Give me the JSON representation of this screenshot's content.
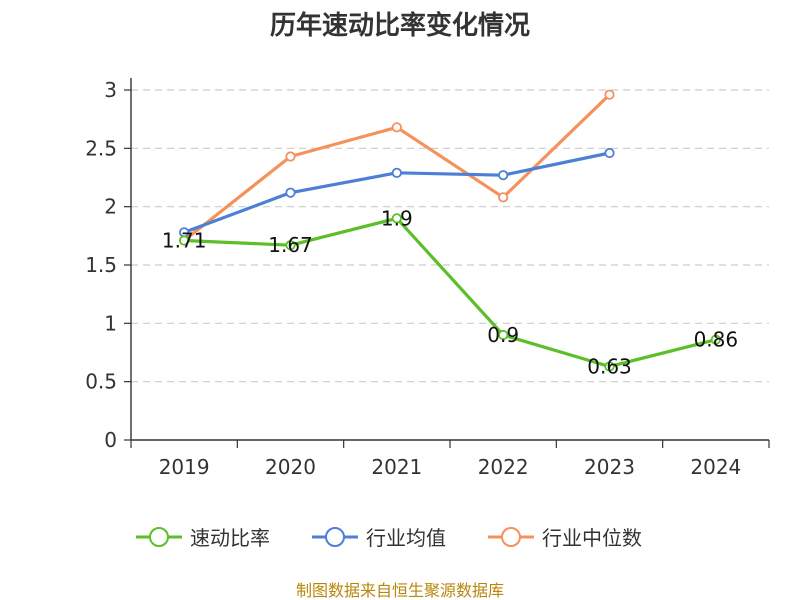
{
  "chart_data": {
    "type": "line",
    "title": "历年速动比率变化情况",
    "categories": [
      "2019",
      "2020",
      "2021",
      "2022",
      "2023",
      "2024"
    ],
    "ylim": [
      0,
      3
    ],
    "yticks": [
      "0",
      "0.5",
      "1",
      "1.5",
      "2",
      "2.5",
      "3"
    ],
    "grid": true,
    "legend_position": "bottom",
    "series": [
      {
        "name": "速动比率",
        "color": "#5cbf2a",
        "values": [
          1.71,
          1.67,
          1.9,
          0.9,
          0.63,
          0.86
        ],
        "labels": [
          "1.71",
          "1.67",
          "1.9",
          "0.9",
          "0.63",
          "0.86"
        ]
      },
      {
        "name": "行业均值",
        "color": "#4e7fd6",
        "values": [
          1.78,
          2.12,
          2.29,
          2.27,
          2.46,
          null
        ]
      },
      {
        "name": "行业中位数",
        "color": "#f4915c",
        "values": [
          1.71,
          2.43,
          2.68,
          2.08,
          2.96,
          null
        ]
      }
    ],
    "source": "制图数据来自恒生聚源数据库"
  }
}
